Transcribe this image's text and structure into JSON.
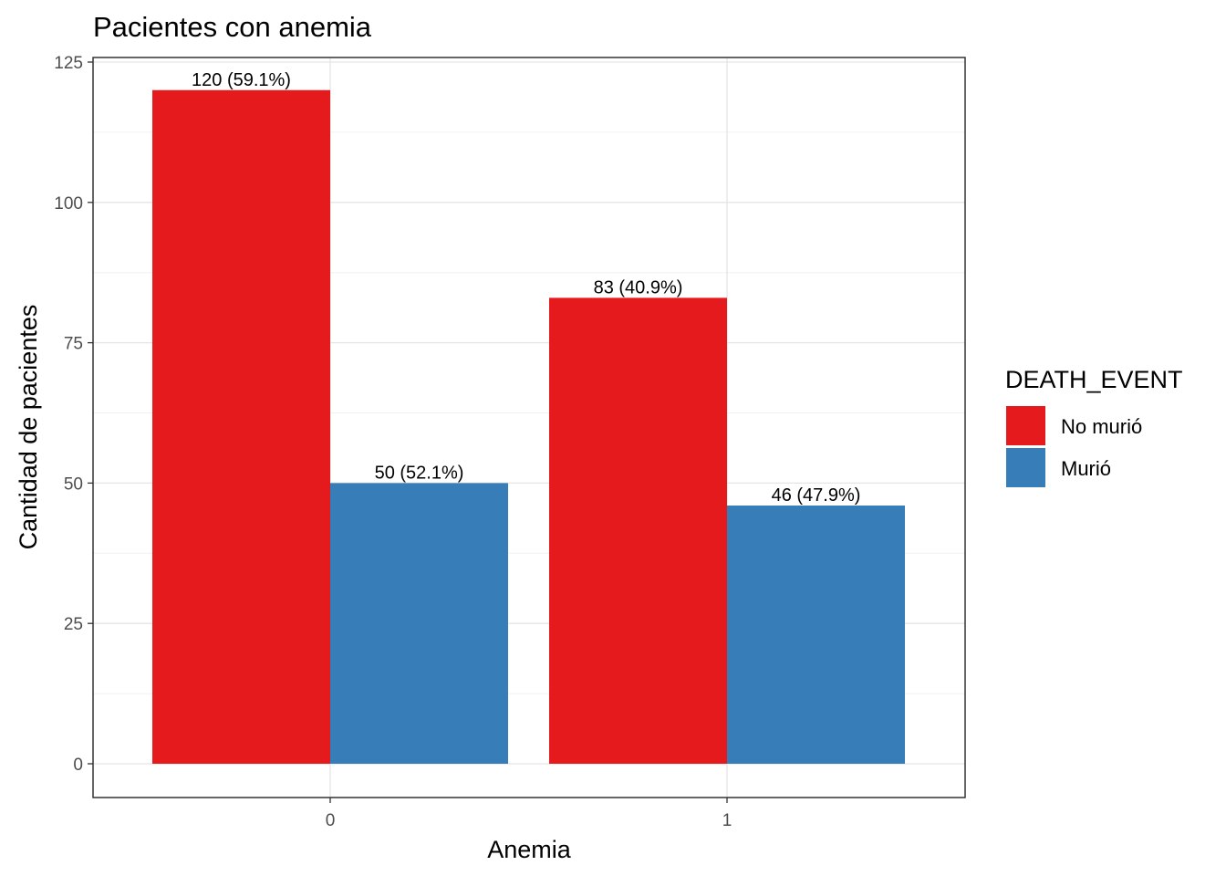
{
  "chart_data": {
    "type": "bar",
    "title": "Pacientes con anemia",
    "xlabel": "Anemia",
    "ylabel": "Cantidad de pacientes",
    "categories": [
      "0",
      "1"
    ],
    "ylim": [
      0,
      125
    ],
    "yticks": [
      0,
      25,
      50,
      75,
      100,
      125
    ],
    "series": [
      {
        "name": "No murió",
        "color": "#E41A1C",
        "values": [
          120,
          83
        ],
        "labels": [
          "120 (59.1%)",
          "83 (40.9%)"
        ]
      },
      {
        "name": "Murió",
        "color": "#377EB8",
        "values": [
          50,
          46
        ],
        "labels": [
          "50 (52.1%)",
          "46 (47.9%)"
        ]
      }
    ],
    "legend": {
      "title": "DEATH_EVENT",
      "position": "right"
    },
    "grid": true
  }
}
